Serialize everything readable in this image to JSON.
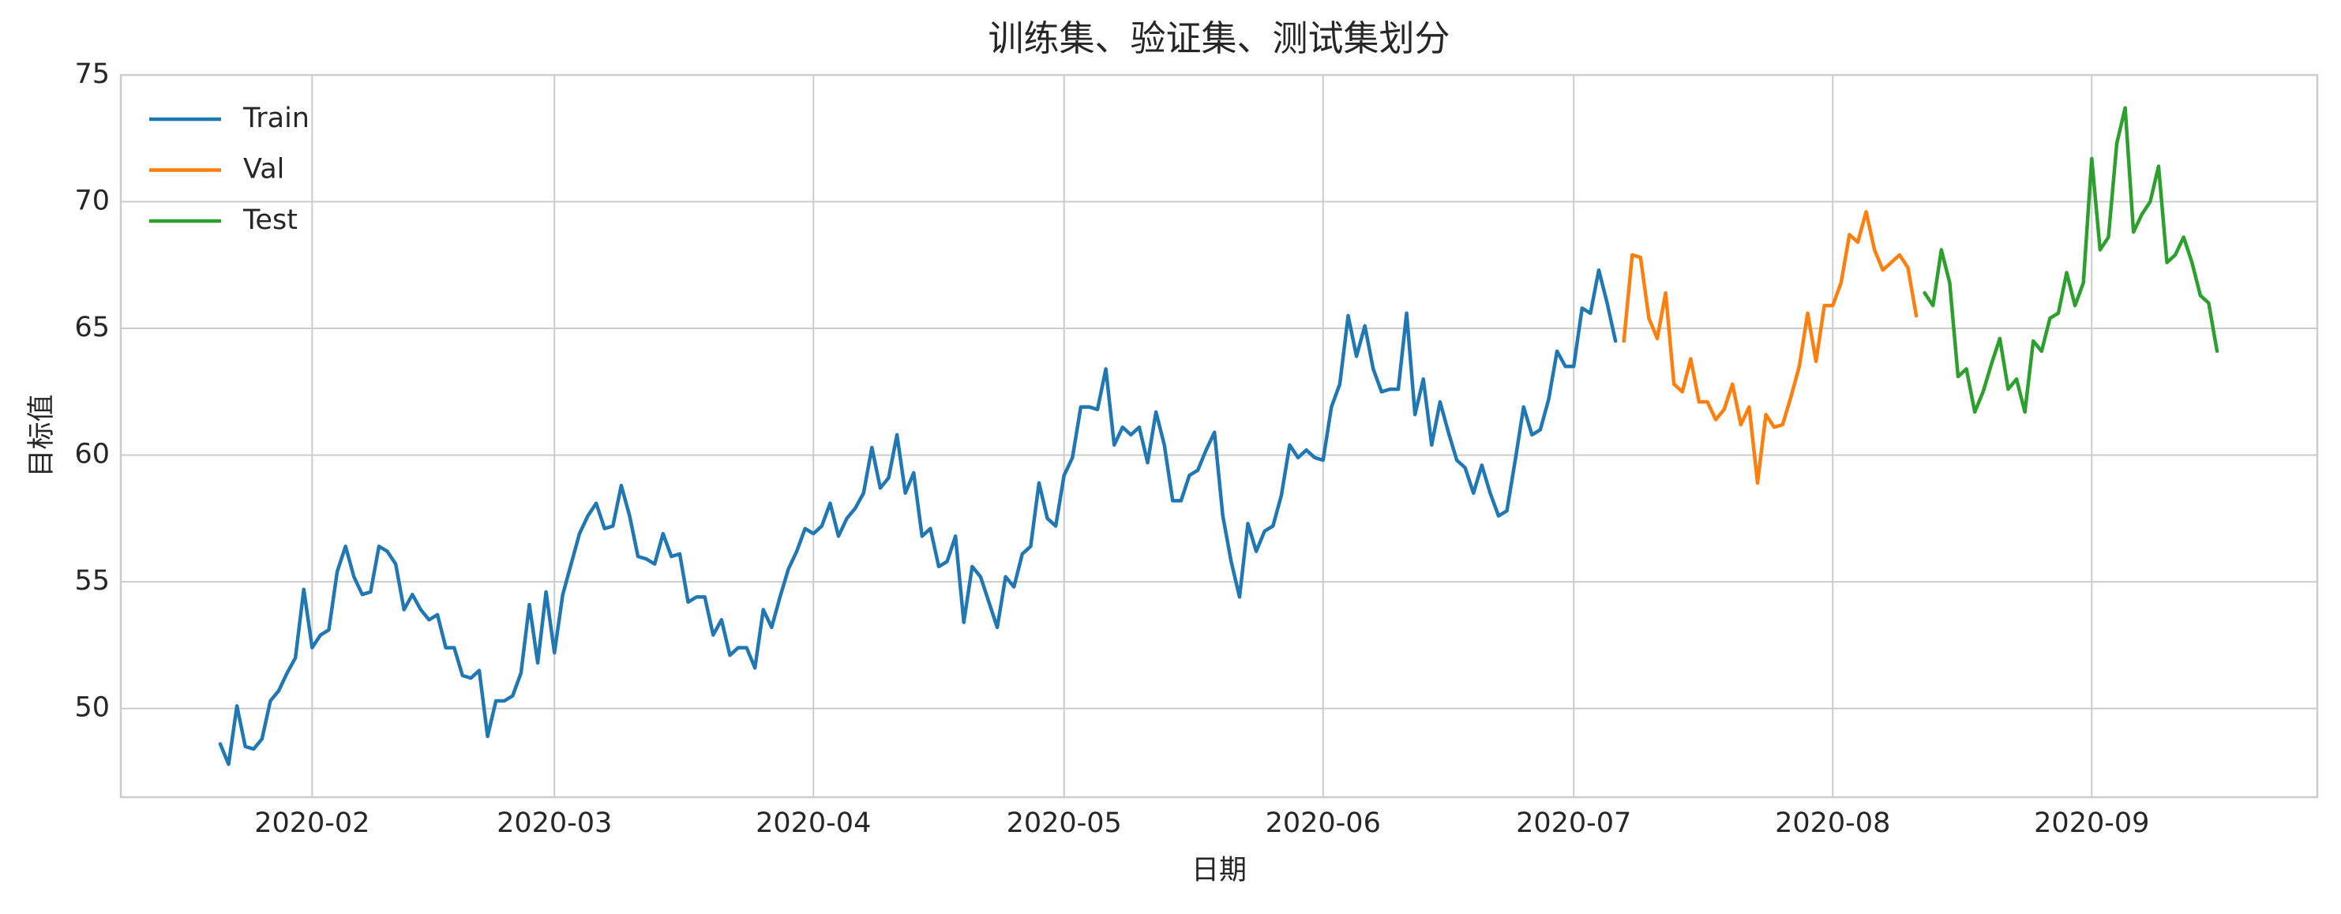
{
  "chart_data": {
    "type": "line",
    "title": "训练集、验证集、测试集划分",
    "xlabel": "日期",
    "ylabel": "目标值",
    "xlim": [
      -11.9,
      251
    ],
    "xticks": [
      {
        "value": 11,
        "label": "2020-02"
      },
      {
        "value": 40,
        "label": "2020-03"
      },
      {
        "value": 71,
        "label": "2020-04"
      },
      {
        "value": 101,
        "label": "2020-05"
      },
      {
        "value": 132,
        "label": "2020-06"
      },
      {
        "value": 162,
        "label": "2020-07"
      },
      {
        "value": 193,
        "label": "2020-08"
      },
      {
        "value": 224,
        "label": "2020-09"
      }
    ],
    "ylim": [
      46.5,
      75
    ],
    "yticks": [
      50,
      55,
      60,
      65,
      70,
      75
    ],
    "grid": true,
    "legend": "upper left",
    "series": [
      {
        "name": "Train",
        "color": "#1f77b4",
        "values": [
          48.6,
          47.8,
          50.1,
          48.5,
          48.4,
          48.8,
          50.3,
          50.7,
          51.4,
          52.0,
          54.7,
          52.4,
          52.9,
          53.1,
          55.4,
          56.4,
          55.2,
          54.5,
          54.6,
          56.4,
          56.2,
          55.7,
          53.9,
          54.5,
          53.9,
          53.5,
          53.7,
          52.4,
          52.4,
          51.3,
          51.2,
          51.5,
          48.9,
          50.3,
          50.3,
          50.5,
          51.4,
          54.1,
          51.8,
          54.6,
          52.2,
          54.5,
          55.7,
          56.9,
          57.6,
          58.1,
          57.1,
          57.2,
          58.8,
          57.6,
          56.0,
          55.9,
          55.7,
          56.9,
          56.0,
          56.1,
          54.2,
          54.4,
          54.4,
          52.9,
          53.5,
          52.1,
          52.4,
          52.4,
          51.6,
          53.9,
          53.2,
          54.4,
          55.5,
          56.2,
          57.1,
          56.9,
          57.2,
          58.1,
          56.8,
          57.5,
          57.9,
          58.5,
          60.3,
          58.7,
          59.1,
          60.8,
          58.5,
          59.3,
          56.8,
          57.1,
          55.6,
          55.8,
          56.8,
          53.4,
          55.6,
          55.2,
          54.2,
          53.2,
          55.2,
          54.8,
          56.1,
          56.4,
          58.9,
          57.5,
          57.2,
          59.2,
          59.9,
          61.9,
          61.9,
          61.8,
          63.4,
          60.4,
          61.1,
          60.8,
          61.1,
          59.7,
          61.7,
          60.4,
          58.2,
          58.2,
          59.2,
          59.4,
          60.2,
          60.9,
          57.6,
          55.8,
          54.4,
          57.3,
          56.2,
          57.0,
          57.2,
          58.4,
          60.4,
          59.9,
          60.2,
          59.9,
          59.8,
          61.9,
          62.8,
          65.5,
          63.9,
          65.1,
          63.4,
          62.5,
          62.6,
          62.6,
          65.6,
          61.6,
          63.0,
          60.4,
          62.1,
          60.9,
          59.8,
          59.5,
          58.5,
          59.6,
          58.5,
          57.6,
          57.8,
          59.8,
          61.9,
          60.8,
          61.0,
          62.2,
          64.1,
          63.5,
          63.5,
          65.8,
          65.6,
          67.3,
          66.0,
          64.5,
          null,
          null,
          null,
          null,
          null,
          null,
          null,
          null,
          null,
          null,
          null,
          null,
          null,
          null,
          null,
          null,
          null,
          null,
          null,
          null,
          null,
          null,
          null,
          null,
          null,
          null,
          null,
          null,
          null,
          null,
          null,
          null,
          null,
          null,
          null,
          null,
          null,
          null,
          null,
          null,
          null,
          null,
          null,
          null,
          null,
          null,
          null,
          null,
          null,
          null,
          null,
          null,
          null,
          null,
          null,
          null,
          null,
          null,
          null,
          null,
          null,
          null,
          null,
          null,
          null,
          null,
          null,
          null,
          null,
          null,
          null,
          null
        ]
      },
      {
        "name": "Val",
        "color": "#ff7f0e",
        "values": [
          null,
          null,
          null,
          null,
          null,
          null,
          null,
          null,
          null,
          null,
          null,
          null,
          null,
          null,
          null,
          null,
          null,
          null,
          null,
          null,
          null,
          null,
          null,
          null,
          null,
          null,
          null,
          null,
          null,
          null,
          null,
          null,
          null,
          null,
          null,
          null,
          null,
          null,
          null,
          null,
          null,
          null,
          null,
          null,
          null,
          null,
          null,
          null,
          null,
          null,
          null,
          null,
          null,
          null,
          null,
          null,
          null,
          null,
          null,
          null,
          null,
          null,
          null,
          null,
          null,
          null,
          null,
          null,
          null,
          null,
          null,
          null,
          null,
          null,
          null,
          null,
          null,
          null,
          null,
          null,
          null,
          null,
          null,
          null,
          null,
          null,
          null,
          null,
          null,
          null,
          null,
          null,
          null,
          null,
          null,
          null,
          null,
          null,
          null,
          null,
          null,
          null,
          null,
          null,
          null,
          null,
          null,
          null,
          null,
          null,
          null,
          null,
          null,
          null,
          null,
          null,
          null,
          null,
          null,
          null,
          null,
          null,
          null,
          null,
          null,
          null,
          null,
          null,
          null,
          null,
          null,
          null,
          null,
          null,
          null,
          null,
          null,
          null,
          null,
          null,
          null,
          null,
          null,
          null,
          null,
          null,
          null,
          null,
          null,
          null,
          null,
          null,
          null,
          null,
          null,
          null,
          null,
          null,
          null,
          null,
          null,
          null,
          null,
          null,
          null,
          null,
          null,
          null,
          64.5,
          67.9,
          67.8,
          65.4,
          64.6,
          66.4,
          62.8,
          62.5,
          63.8,
          62.1,
          62.1,
          61.4,
          61.8,
          62.8,
          61.2,
          61.9,
          58.9,
          61.6,
          61.1,
          61.2,
          62.3,
          63.5,
          65.6,
          63.7,
          65.9,
          65.9,
          66.8,
          68.7,
          68.4,
          69.6,
          68.1,
          67.3,
          67.6,
          67.9,
          67.4,
          65.5,
          null,
          null,
          null,
          null,
          null,
          null,
          null,
          null,
          null,
          null,
          null,
          null,
          null,
          null,
          null,
          null,
          null,
          null,
          null,
          null,
          null,
          null,
          null,
          null,
          null,
          null,
          null,
          null,
          null,
          null,
          null,
          null,
          null,
          null,
          null,
          null
        ]
      },
      {
        "name": "Test",
        "color": "#2ca02c",
        "values": [
          null,
          null,
          null,
          null,
          null,
          null,
          null,
          null,
          null,
          null,
          null,
          null,
          null,
          null,
          null,
          null,
          null,
          null,
          null,
          null,
          null,
          null,
          null,
          null,
          null,
          null,
          null,
          null,
          null,
          null,
          null,
          null,
          null,
          null,
          null,
          null,
          null,
          null,
          null,
          null,
          null,
          null,
          null,
          null,
          null,
          null,
          null,
          null,
          null,
          null,
          null,
          null,
          null,
          null,
          null,
          null,
          null,
          null,
          null,
          null,
          null,
          null,
          null,
          null,
          null,
          null,
          null,
          null,
          null,
          null,
          null,
          null,
          null,
          null,
          null,
          null,
          null,
          null,
          null,
          null,
          null,
          null,
          null,
          null,
          null,
          null,
          null,
          null,
          null,
          null,
          null,
          null,
          null,
          null,
          null,
          null,
          null,
          null,
          null,
          null,
          null,
          null,
          null,
          null,
          null,
          null,
          null,
          null,
          null,
          null,
          null,
          null,
          null,
          null,
          null,
          null,
          null,
          null,
          null,
          null,
          null,
          null,
          null,
          null,
          null,
          null,
          null,
          null,
          null,
          null,
          null,
          null,
          null,
          null,
          null,
          null,
          null,
          null,
          null,
          null,
          null,
          null,
          null,
          null,
          null,
          null,
          null,
          null,
          null,
          null,
          null,
          null,
          null,
          null,
          null,
          null,
          null,
          null,
          null,
          null,
          null,
          null,
          null,
          null,
          null,
          null,
          null,
          null,
          null,
          null,
          null,
          null,
          null,
          null,
          null,
          null,
          null,
          null,
          null,
          null,
          null,
          null,
          null,
          null,
          null,
          null,
          null,
          null,
          null,
          null,
          null,
          null,
          null,
          null,
          null,
          null,
          null,
          null,
          null,
          null,
          null,
          null,
          null,
          null,
          66.4,
          65.9,
          68.1,
          66.8,
          63.1,
          63.4,
          61.7,
          62.5,
          63.6,
          64.6,
          62.6,
          63.0,
          61.7,
          64.5,
          64.1,
          65.4,
          65.6,
          67.2,
          65.9,
          66.8,
          71.7,
          68.1,
          68.6,
          72.3,
          73.7,
          68.8,
          69.5,
          70.0,
          71.4,
          67.6,
          67.9,
          68.6,
          67.6,
          66.3,
          66.0,
          64.1
        ]
      }
    ]
  }
}
